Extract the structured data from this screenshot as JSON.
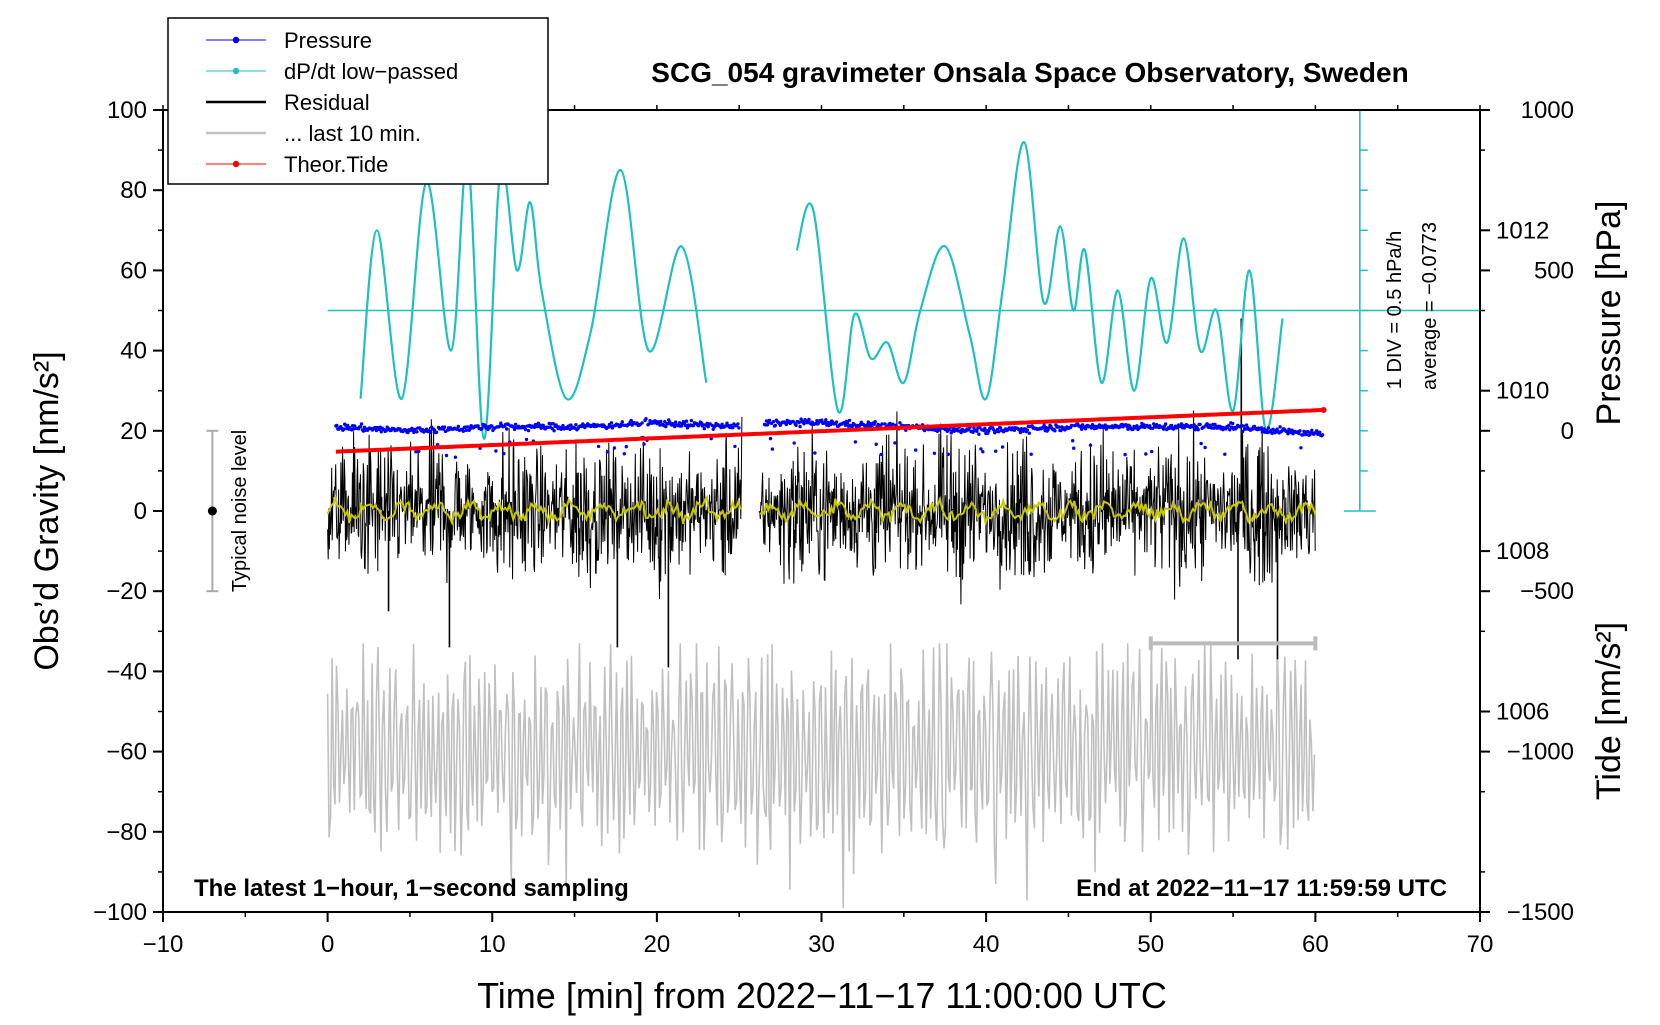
{
  "chart_data": {
    "type": "line",
    "title": "SCG_054 gravimeter Onsala Space Observatory, Sweden",
    "xlabel": "Time [min] from 2022−11−17 11:00:00 UTC",
    "ylabel_left": "Obs’d Gravity [nm/s²]",
    "ylabel_right_top": "Pressure [hPa]",
    "ylabel_right_bottom": "Tide [nm/s²]",
    "xlim": [
      -10,
      70
    ],
    "ylim_left": [
      -100,
      100
    ],
    "ylim_pressure": [
      1003.5,
      1013.5
    ],
    "ylim_tide": [
      -1500,
      1000
    ],
    "x_ticks": [
      "−10",
      "0",
      "10",
      "20",
      "30",
      "40",
      "50",
      "60",
      "70"
    ],
    "x_tick_values": [
      -10,
      0,
      10,
      20,
      30,
      40,
      50,
      60,
      70
    ],
    "y_left_ticks": [
      "100",
      "80",
      "60",
      "40",
      "20",
      "0",
      "−20",
      "−40",
      "−60",
      "−80",
      "−100"
    ],
    "y_left_tick_values": [
      100,
      80,
      60,
      40,
      20,
      0,
      -20,
      -40,
      -60,
      -80,
      -100
    ],
    "y_pressure_ticks": [
      "1012",
      "1010",
      "1008",
      "1006"
    ],
    "y_pressure_tick_values": [
      1012,
      1010,
      1008,
      1006
    ],
    "y_tide_ticks": [
      "1000",
      "500",
      "0",
      "−500",
      "−1000",
      "−1500"
    ],
    "y_tide_tick_values": [
      1000,
      500,
      0,
      -500,
      -1000,
      -1500
    ],
    "legend": {
      "position": "top-left",
      "entries": [
        {
          "label": "Pressure",
          "color": "#0000ff",
          "style": "line-dot"
        },
        {
          "label": "dP/dt low−passed",
          "color": "#20c0c0",
          "style": "line-dot"
        },
        {
          "label": "Residual",
          "color": "#000000",
          "style": "line"
        },
        {
          "label": "... last 10 min.",
          "color": "#c0c0c0",
          "style": "line"
        },
        {
          "label": "Theor.Tide",
          "color": "#ff0000",
          "style": "line-dot"
        }
      ]
    },
    "annotations": {
      "bottom_left": "The latest 1−hour, 1−second sampling",
      "bottom_right": "End at 2022−11−17 11:59:59 UTC",
      "noise_label": "Typical noise level",
      "div_label": "1 DIV = 0.5 hPa/h",
      "average_label": "average = −0.0773"
    },
    "noise_bar": {
      "x": -7,
      "y_center": 0,
      "y_low": -20,
      "y_high": 20
    },
    "dpdt_scale": {
      "x": 62.7,
      "y_low": 0,
      "y_high": 100,
      "zero_level_gravity": 50
    },
    "last10_bar": {
      "x_start": 50,
      "x_end": 60,
      "y": -33
    },
    "gap": {
      "start": 25.2,
      "end": 26.2
    },
    "series": [
      {
        "name": "Pressure",
        "axis": "pressure",
        "color": "#0000ff",
        "x": [
          0.5,
          5,
          10,
          15,
          20,
          25,
          26.5,
          30,
          35,
          40,
          45,
          50,
          55,
          60.5
        ],
        "values": [
          1009.55,
          1009.5,
          1009.55,
          1009.55,
          1009.6,
          1009.55,
          1009.6,
          1009.6,
          1009.55,
          1009.5,
          1009.55,
          1009.55,
          1009.55,
          1009.45
        ]
      },
      {
        "name": "dP/dt low−passed",
        "axis": "left",
        "color": "#20c0c0",
        "x": [
          2,
          3,
          4.5,
          6,
          7.5,
          8.5,
          9.5,
          10.5,
          11.5,
          12.3,
          13,
          14.5,
          16,
          17.8,
          19.5,
          21.5,
          23,
          28.5,
          29.5,
          31,
          32,
          33,
          34,
          35,
          36,
          37.5,
          39,
          40,
          41,
          42.3,
          43.5,
          44.5,
          45.3,
          46,
          47,
          48,
          49,
          50,
          51,
          52,
          53,
          54,
          55,
          56,
          57,
          58
        ],
        "values": [
          28,
          70,
          28,
          82,
          40,
          88,
          18,
          85,
          60,
          77,
          55,
          28,
          45,
          85,
          40,
          66,
          32,
          65,
          75,
          25,
          49,
          38,
          42,
          32,
          50,
          66,
          44,
          28,
          55,
          92,
          52,
          71,
          50,
          65,
          32,
          55,
          30,
          58,
          42,
          68,
          40,
          50,
          25,
          60,
          20,
          48
        ]
      },
      {
        "name": "Residual",
        "axis": "left",
        "color": "#000000",
        "noise_amplitude": 18,
        "spikes": [
          {
            "x": 3.7,
            "value": -25
          },
          {
            "x": 7.4,
            "value": -34
          },
          {
            "x": 17.6,
            "value": -34
          },
          {
            "x": 20.7,
            "value": -39
          },
          {
            "x": 55.3,
            "value": -37
          },
          {
            "x": 55.5,
            "value": 48
          },
          {
            "x": 57.7,
            "value": -37
          }
        ],
        "x_range": [
          0,
          60
        ]
      },
      {
        "name": "Residual (smoothed)",
        "axis": "left",
        "color": "#c8c800",
        "x_range": [
          0,
          60
        ],
        "values_approx": 0
      },
      {
        "name": "... last 10 min.",
        "axis": "left",
        "color": "#c0c0c0",
        "center": -60,
        "amplitude_range": [
          -99,
          -33
        ],
        "x_range": [
          0,
          60
        ]
      },
      {
        "name": "Theor.Tide",
        "axis": "tide",
        "color": "#ff0000",
        "x": [
          0.5,
          60.5
        ],
        "values": [
          -65,
          65
        ]
      }
    ]
  }
}
